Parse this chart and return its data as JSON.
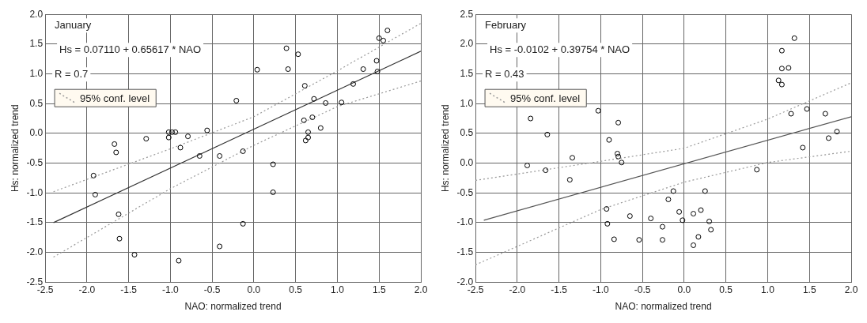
{
  "chart_data": [
    {
      "type": "scatter",
      "xlabel": "NAO: normalized trend",
      "ylabel": "Hs: normalized trend",
      "annotations": [
        "January",
        "Hs = 0.07110 + 0.65617 * NAO",
        "R = 0.7"
      ],
      "xlim": [
        -2.5,
        2.0
      ],
      "ylim": [
        -2.5,
        2.0
      ],
      "xticks": [
        {
          "value": -2.5,
          "label": "-2.5"
        },
        {
          "value": -2,
          "label": "-2.0"
        },
        {
          "value": -1.5,
          "label": "-1.5"
        },
        {
          "value": -1,
          "label": "-1.0"
        },
        {
          "value": -0.5,
          "label": "-0.5"
        },
        {
          "value": 0,
          "label": "0.0"
        },
        {
          "value": 0.5,
          "label": "0.5"
        },
        {
          "value": 1,
          "label": "1.0"
        },
        {
          "value": 1.5,
          "label": "1.5"
        },
        {
          "value": 2,
          "label": "2.0"
        }
      ],
      "yticks": [
        {
          "value": -2.5,
          "label": "-2.5"
        },
        {
          "value": -2,
          "label": "-2.0"
        },
        {
          "value": -1.5,
          "label": "-1.5"
        },
        {
          "value": -1,
          "label": "-1.0"
        },
        {
          "value": -0.5,
          "label": "-0.5"
        },
        {
          "value": 0,
          "label": "0.0"
        },
        {
          "value": 0.5,
          "label": "0.5"
        },
        {
          "value": 1,
          "label": "1.0"
        },
        {
          "value": 1.5,
          "label": "1.5"
        },
        {
          "value": 2,
          "label": "2.0"
        }
      ],
      "grid": true,
      "legend": "top left",
      "series": [
        {
          "type": "scatter",
          "color": "#000000",
          "marker": "circle",
          "x": [
            -1.67,
            -1.65,
            -1.92,
            -1.9,
            -1.62,
            -1.61,
            -1.43,
            -1.29,
            -1.02,
            -0.98,
            -1.02,
            -0.94,
            -0.88,
            -0.79,
            -0.9,
            -0.65,
            -0.56,
            -0.41,
            -0.41,
            -0.21,
            -0.13,
            -0.13,
            0.04,
            0.23,
            0.23,
            0.39,
            0.41,
            0.53,
            0.61,
            0.6,
            0.62,
            0.65,
            0.65,
            0.7,
            0.72,
            0.8,
            0.86,
            1.05,
            1.19,
            1.31,
            1.47,
            1.5,
            1.55,
            1.6,
            1.48
          ],
          "values": [
            -0.18,
            -0.32,
            -0.71,
            -1.03,
            -1.36,
            -1.77,
            -2.04,
            -0.09,
            0.02,
            0.02,
            -0.07,
            0.02,
            -0.24,
            -0.05,
            -2.14,
            -0.38,
            0.05,
            -0.38,
            -1.9,
            0.55,
            -0.3,
            -1.52,
            1.07,
            -0.52,
            -0.99,
            1.43,
            1.08,
            1.33,
            0.8,
            0.22,
            -0.12,
            -0.07,
            0.02,
            0.27,
            0.58,
            0.09,
            0.51,
            0.52,
            0.83,
            1.08,
            1.22,
            1.6,
            1.56,
            1.73,
            1.04
          ]
        },
        {
          "type": "line",
          "color": "#333333",
          "marker": "none",
          "line_style": "solid",
          "x": [
            -2.4,
            2.0
          ],
          "values": [
            -1.5,
            1.38
          ]
        },
        {
          "type": "line",
          "name": "95% conf. level",
          "color": "#999999",
          "marker": "none",
          "line_style": "dotted",
          "x": [
            -2.4,
            -1,
            0,
            1,
            2
          ],
          "values": [
            -0.98,
            -0.26,
            0.28,
            1.05,
            1.85
          ]
        },
        {
          "type": "line",
          "color": "#999999",
          "marker": "none",
          "line_style": "dotted",
          "x": [
            -2.4,
            -1,
            0,
            1,
            2
          ],
          "values": [
            -2.08,
            -0.93,
            -0.2,
            0.45,
            0.88
          ]
        }
      ]
    },
    {
      "type": "scatter",
      "xlabel": "NAO: normalized trend",
      "ylabel": "Hs: normalized trend",
      "annotations": [
        "February",
        "Hs = -0.0102 + 0.39754 * NAO",
        "R = 0.43"
      ],
      "xlim": [
        -2.5,
        2.0
      ],
      "ylim": [
        -2.0,
        2.5
      ],
      "xticks": [
        {
          "value": -2.5,
          "label": "-2.5"
        },
        {
          "value": -2,
          "label": "-2.0"
        },
        {
          "value": -1.5,
          "label": "-1.5"
        },
        {
          "value": -1,
          "label": "-1.0"
        },
        {
          "value": -0.5,
          "label": "-0.5"
        },
        {
          "value": 0,
          "label": "0.0"
        },
        {
          "value": 0.5,
          "label": "0.5"
        },
        {
          "value": 1,
          "label": "1.0"
        },
        {
          "value": 1.5,
          "label": "1.5"
        },
        {
          "value": 2,
          "label": "2.0"
        }
      ],
      "yticks": [
        {
          "value": -2,
          "label": "-2.0"
        },
        {
          "value": -1.5,
          "label": "-1.5"
        },
        {
          "value": -1,
          "label": "-1.0"
        },
        {
          "value": -0.5,
          "label": "-0.5"
        },
        {
          "value": 0,
          "label": "0.0"
        },
        {
          "value": 0.5,
          "label": "0.5"
        },
        {
          "value": 1,
          "label": "1.0"
        },
        {
          "value": 1.5,
          "label": "1.5"
        },
        {
          "value": 2,
          "label": "2.0"
        },
        {
          "value": 2.5,
          "label": "2.5"
        }
      ],
      "grid": true,
      "legend": "top left",
      "series": [
        {
          "type": "scatter",
          "color": "#000000",
          "marker": "circle",
          "x": [
            -1.84,
            -1.64,
            -1.88,
            -1.66,
            -1.34,
            -1.37,
            -1.03,
            -0.79,
            -0.9,
            -0.8,
            -0.79,
            -0.75,
            -0.93,
            -0.92,
            -0.65,
            -0.84,
            -0.54,
            -0.4,
            -0.26,
            -0.26,
            -0.13,
            -0.19,
            -0.06,
            -0.02,
            0.11,
            0.2,
            0.25,
            0.3,
            0.32,
            0.17,
            0.11,
            0.87,
            1.28,
            1.47,
            1.69,
            1.42,
            1.73,
            1.83,
            1.13,
            1.17,
            1.17,
            1.25,
            1.17,
            1.32
          ],
          "values": [
            0.75,
            0.48,
            -0.04,
            -0.12,
            0.09,
            -0.28,
            0.88,
            0.68,
            0.39,
            0.16,
            0.11,
            0.01,
            -0.77,
            -1.02,
            -0.89,
            -1.28,
            -1.29,
            -0.93,
            -1.07,
            -1.29,
            -0.47,
            -0.61,
            -0.82,
            -0.96,
            -0.85,
            -0.79,
            -0.47,
            -0.98,
            -1.12,
            -1.24,
            -1.38,
            -0.11,
            0.83,
            0.91,
            0.83,
            0.26,
            0.42,
            0.53,
            1.39,
            1.32,
            1.59,
            1.6,
            1.89,
            2.1
          ]
        },
        {
          "type": "line",
          "color": "#555555",
          "marker": "none",
          "line_style": "solid",
          "x": [
            -2.4,
            2.0
          ],
          "values": [
            -0.96,
            0.78
          ]
        },
        {
          "type": "line",
          "name": "95% conf. level",
          "color": "#999999",
          "marker": "none",
          "line_style": "dotted",
          "x": [
            -2.5,
            -1,
            0,
            1,
            2
          ],
          "values": [
            -0.29,
            0.03,
            0.25,
            0.74,
            1.35
          ]
        },
        {
          "type": "line",
          "color": "#999999",
          "marker": "none",
          "line_style": "dotted",
          "x": [
            -2.5,
            -1,
            0,
            1,
            2
          ],
          "values": [
            -1.71,
            -0.78,
            -0.32,
            0.01,
            0.2
          ]
        }
      ]
    }
  ]
}
